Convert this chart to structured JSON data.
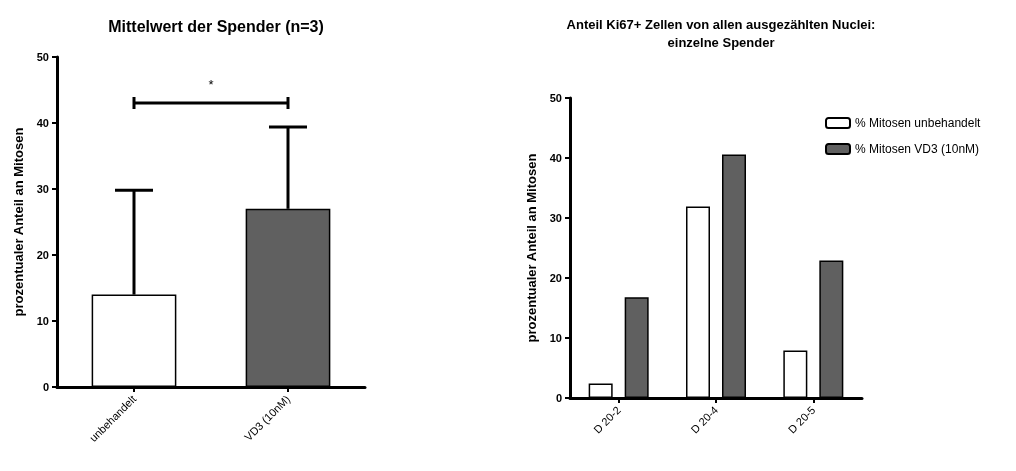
{
  "chart_data": [
    {
      "type": "bar",
      "title": "Mittelwert der Spender (n=3)",
      "ylabel": "prozentualer Anteil an Mitosen",
      "categories": [
        "unbehandelt",
        "VD3 (10nM)"
      ],
      "values": [
        14,
        27
      ],
      "colors": [
        "#ffffff",
        "#606060"
      ],
      "errors": [
        [
          14,
          29.8
        ],
        [
          27,
          39.4
        ]
      ],
      "ylim": [
        0,
        50
      ],
      "yticks": [
        0,
        10,
        20,
        30,
        40,
        50
      ],
      "grid": false,
      "legend": false,
      "annotations": [
        "*"
      ]
    },
    {
      "type": "bar",
      "title": "Anteil Ki67+ Zellen von allen ausgezählten Nuclei:\neinzelne Spender",
      "ylabel": "prozentualer Anteil an Mitosen",
      "categories": [
        "D 20-2",
        "D 20-4",
        "D 20-5"
      ],
      "series": [
        {
          "name": "% Mitosen unbehandelt",
          "color": "#ffffff",
          "values": [
            2.4,
            31.9,
            7.9
          ]
        },
        {
          "name": "% Mitosen VD3 (10nM)",
          "color": "#606060",
          "values": [
            16.8,
            40.6,
            22.9
          ]
        }
      ],
      "ylim": [
        0,
        50
      ],
      "yticks": [
        0,
        10,
        20,
        30,
        40,
        50
      ],
      "grid": false,
      "legend": "top right"
    }
  ]
}
